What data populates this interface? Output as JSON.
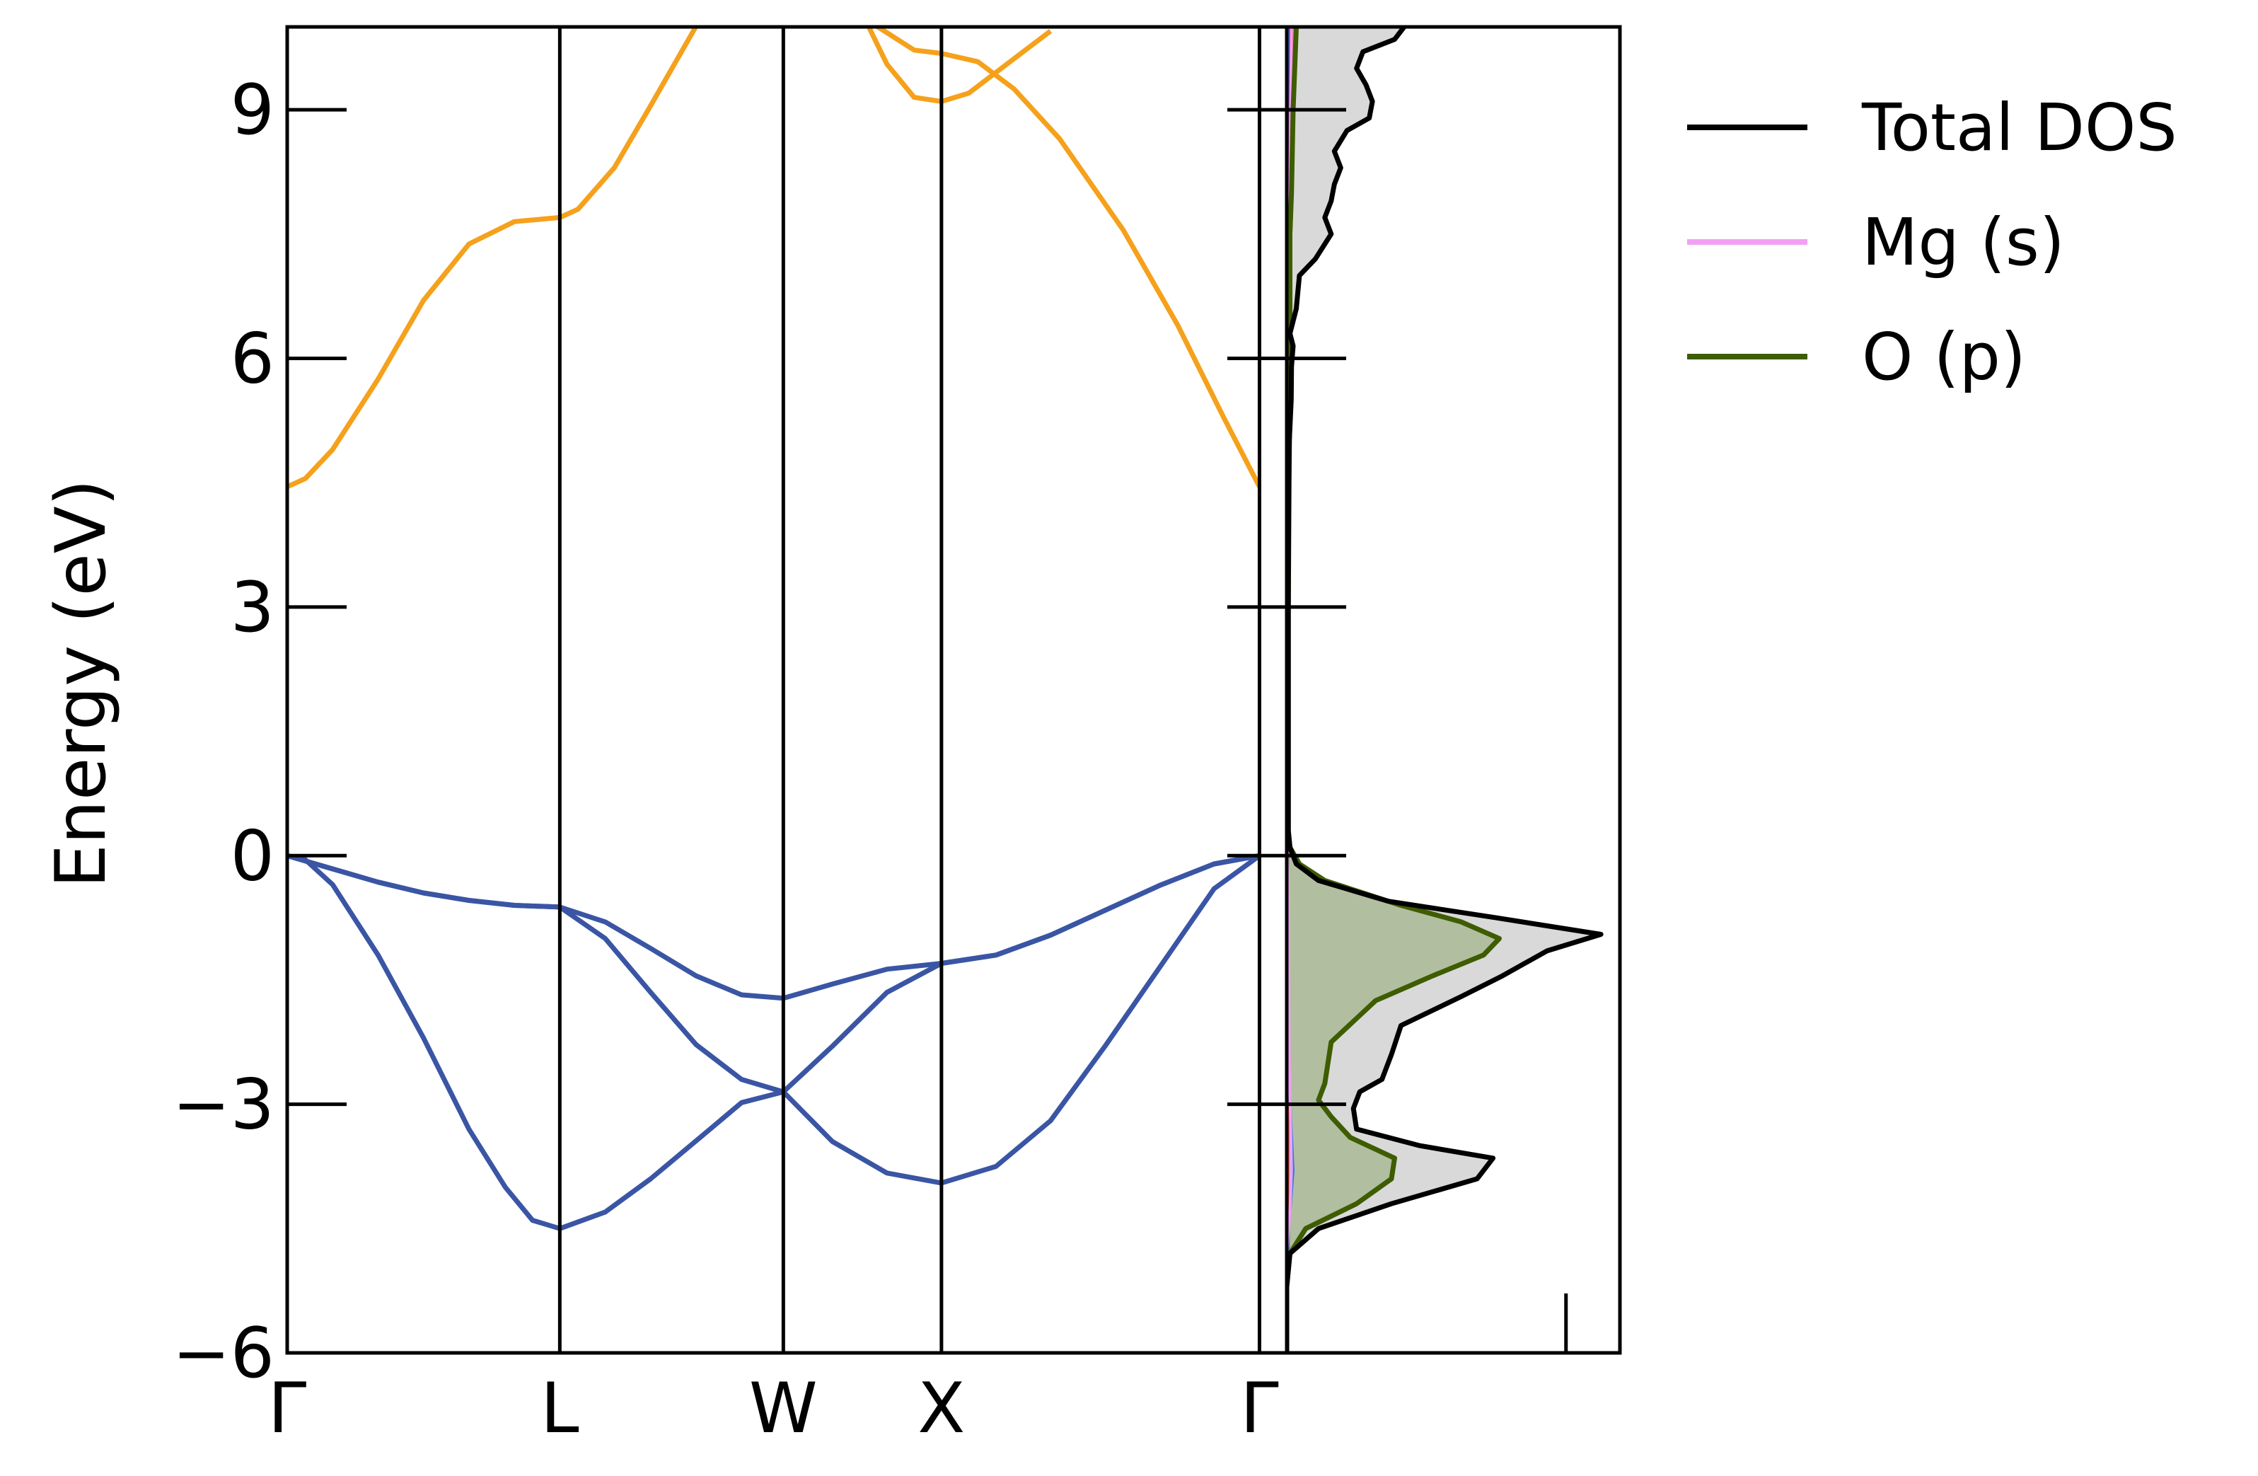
{
  "chart_data": {
    "type": "line",
    "title": "",
    "ylabel": "Energy (eV)",
    "ylim": [
      -6,
      10
    ],
    "yticks": [
      {
        "value": -6,
        "label": "−6"
      },
      {
        "value": -3,
        "label": "−3"
      },
      {
        "value": 0,
        "label": "0"
      },
      {
        "value": 3,
        "label": "3"
      },
      {
        "value": 6,
        "label": "6"
      },
      {
        "value": 9,
        "label": "9"
      }
    ],
    "kpath": {
      "range": [
        0,
        5.5
      ],
      "labels": [
        {
          "pos": 0,
          "label": "Γ"
        },
        {
          "pos": 1.5,
          "label": "L"
        },
        {
          "pos": 2.73,
          "label": "W"
        },
        {
          "pos": 3.6,
          "label": "X"
        },
        {
          "pos": 5.35,
          "label": "Γ"
        }
      ]
    },
    "band_colors": {
      "conduction": "#f5a11b",
      "valence": "#3a55a4"
    },
    "bands": [
      {
        "kind": "valence",
        "points": [
          [
            0,
            0
          ],
          [
            0.25,
            -0.16
          ],
          [
            0.5,
            -0.32
          ],
          [
            0.75,
            -0.45
          ],
          [
            1.0,
            -0.54
          ],
          [
            1.25,
            -0.6
          ],
          [
            1.5,
            -0.62
          ],
          [
            1.75,
            -0.8
          ],
          [
            2.0,
            -1.12
          ],
          [
            2.25,
            -1.45
          ],
          [
            2.5,
            -1.68
          ],
          [
            2.73,
            -1.72
          ],
          [
            3.0,
            -1.55
          ],
          [
            3.3,
            -1.37
          ],
          [
            3.6,
            -1.3
          ],
          [
            3.9,
            -1.2
          ],
          [
            4.2,
            -0.96
          ],
          [
            4.5,
            -0.66
          ],
          [
            4.8,
            -0.36
          ],
          [
            5.1,
            -0.1
          ],
          [
            5.35,
            0
          ]
        ]
      },
      {
        "kind": "valence",
        "points": [
          [
            0,
            0
          ],
          [
            0.25,
            -0.16
          ],
          [
            0.5,
            -0.32
          ],
          [
            0.75,
            -0.45
          ],
          [
            1.0,
            -0.54
          ],
          [
            1.25,
            -0.6
          ],
          [
            1.5,
            -0.62
          ],
          [
            1.75,
            -1.0
          ],
          [
            2.0,
            -1.65
          ],
          [
            2.25,
            -2.28
          ],
          [
            2.5,
            -2.7
          ],
          [
            2.73,
            -2.85
          ],
          [
            3.0,
            -2.3
          ],
          [
            3.3,
            -1.65
          ],
          [
            3.6,
            -1.3
          ],
          [
            3.9,
            -1.2
          ],
          [
            4.2,
            -0.96
          ],
          [
            4.5,
            -0.66
          ],
          [
            4.8,
            -0.36
          ],
          [
            5.1,
            -0.1
          ],
          [
            5.35,
            0
          ]
        ]
      },
      {
        "kind": "valence",
        "points": [
          [
            0,
            0
          ],
          [
            0.1,
            -0.05
          ],
          [
            0.25,
            -0.35
          ],
          [
            0.5,
            -1.2
          ],
          [
            0.75,
            -2.2
          ],
          [
            1.0,
            -3.3
          ],
          [
            1.2,
            -4.0
          ],
          [
            1.35,
            -4.4
          ],
          [
            1.5,
            -4.5
          ],
          [
            1.75,
            -4.3
          ],
          [
            2.0,
            -3.9
          ],
          [
            2.3,
            -3.35
          ],
          [
            2.5,
            -2.98
          ],
          [
            2.73,
            -2.85
          ],
          [
            3.0,
            -3.45
          ],
          [
            3.3,
            -3.83
          ],
          [
            3.6,
            -3.95
          ],
          [
            3.9,
            -3.75
          ],
          [
            4.2,
            -3.2
          ],
          [
            4.5,
            -2.3
          ],
          [
            4.8,
            -1.35
          ],
          [
            5.1,
            -0.4
          ],
          [
            5.35,
            0
          ]
        ]
      },
      {
        "kind": "conduction",
        "points": [
          [
            0,
            4.45
          ],
          [
            0.1,
            4.55
          ],
          [
            0.25,
            4.9
          ],
          [
            0.5,
            5.75
          ],
          [
            0.75,
            6.7
          ],
          [
            1.0,
            7.38
          ],
          [
            1.25,
            7.65
          ],
          [
            1.5,
            7.7
          ],
          [
            1.6,
            7.8
          ],
          [
            1.8,
            8.3
          ],
          [
            2.0,
            9.05
          ],
          [
            2.3,
            10.2
          ]
        ]
      },
      {
        "kind": "conduction",
        "points": [
          [
            3.2,
            10.0
          ],
          [
            3.3,
            9.55
          ],
          [
            3.45,
            9.15
          ],
          [
            3.6,
            9.1
          ],
          [
            3.75,
            9.2
          ],
          [
            3.9,
            9.45
          ],
          [
            4.05,
            9.7
          ],
          [
            4.2,
            9.95
          ]
        ]
      },
      {
        "kind": "conduction",
        "points": [
          [
            3.15,
            10.2
          ],
          [
            3.25,
            10.0
          ],
          [
            3.45,
            9.72
          ],
          [
            3.6,
            9.68
          ],
          [
            3.8,
            9.58
          ],
          [
            4.0,
            9.25
          ],
          [
            4.25,
            8.65
          ],
          [
            4.6,
            7.55
          ],
          [
            4.9,
            6.4
          ],
          [
            5.15,
            5.3
          ],
          [
            5.35,
            4.45
          ]
        ]
      }
    ],
    "dos": {
      "xlim": [
        0,
        1.05
      ],
      "fermi_marker": 0.88,
      "total": {
        "name": "Total DOS",
        "color": "#000000",
        "fill": "#d9d9d9",
        "points": [
          [
            -6,
            0
          ],
          [
            -5.2,
            0
          ],
          [
            -4.8,
            0.01
          ],
          [
            -4.5,
            0.1
          ],
          [
            -4.2,
            0.33
          ],
          [
            -3.9,
            0.6
          ],
          [
            -3.65,
            0.65
          ],
          [
            -3.5,
            0.42
          ],
          [
            -3.3,
            0.22
          ],
          [
            -3.05,
            0.21
          ],
          [
            -2.85,
            0.23
          ],
          [
            -2.7,
            0.3
          ],
          [
            -2.4,
            0.33
          ],
          [
            -2.05,
            0.36
          ],
          [
            -1.7,
            0.55
          ],
          [
            -1.45,
            0.68
          ],
          [
            -1.15,
            0.82
          ],
          [
            -0.95,
            0.99
          ],
          [
            -0.75,
            0.66
          ],
          [
            -0.55,
            0.32
          ],
          [
            -0.3,
            0.1
          ],
          [
            -0.1,
            0.03
          ],
          [
            0.1,
            0.01
          ],
          [
            0.3,
            0.005
          ],
          [
            1.5,
            0.005
          ],
          [
            3.0,
            0.005
          ],
          [
            4.5,
            0.006
          ],
          [
            5.0,
            0.008
          ],
          [
            5.5,
            0.014
          ],
          [
            5.9,
            0.015
          ],
          [
            6.15,
            0.02
          ],
          [
            6.3,
            0.01
          ],
          [
            6.6,
            0.03
          ],
          [
            7.0,
            0.04
          ],
          [
            7.2,
            0.09
          ],
          [
            7.5,
            0.14
          ],
          [
            7.7,
            0.12
          ],
          [
            7.9,
            0.14
          ],
          [
            8.1,
            0.15
          ],
          [
            8.3,
            0.17
          ],
          [
            8.5,
            0.15
          ],
          [
            8.75,
            0.19
          ],
          [
            8.9,
            0.26
          ],
          [
            9.1,
            0.27
          ],
          [
            9.3,
            0.25
          ],
          [
            9.5,
            0.22
          ],
          [
            9.7,
            0.24
          ],
          [
            9.85,
            0.34
          ],
          [
            10.0,
            0.37
          ]
        ]
      },
      "o_p": {
        "name": "O (p)",
        "color": "#3e5c00",
        "fill": "#b1bfa0",
        "points": [
          [
            -6,
            0
          ],
          [
            -5.2,
            0
          ],
          [
            -4.8,
            0.01
          ],
          [
            -4.5,
            0.06
          ],
          [
            -4.2,
            0.22
          ],
          [
            -3.9,
            0.33
          ],
          [
            -3.65,
            0.34
          ],
          [
            -3.4,
            0.2
          ],
          [
            -3.15,
            0.14
          ],
          [
            -2.95,
            0.1
          ],
          [
            -2.75,
            0.12
          ],
          [
            -2.5,
            0.13
          ],
          [
            -2.25,
            0.14
          ],
          [
            -2.0,
            0.21
          ],
          [
            -1.75,
            0.28
          ],
          [
            -1.45,
            0.46
          ],
          [
            -1.2,
            0.62
          ],
          [
            -1.0,
            0.67
          ],
          [
            -0.8,
            0.55
          ],
          [
            -0.6,
            0.36
          ],
          [
            -0.3,
            0.12
          ],
          [
            -0.1,
            0.04
          ],
          [
            0.1,
            0.01
          ],
          [
            0.3,
            0.005
          ],
          [
            3.0,
            0.005
          ],
          [
            6.0,
            0.01
          ],
          [
            7.5,
            0.01
          ],
          [
            8.0,
            0.015
          ],
          [
            9.0,
            0.02
          ],
          [
            10.0,
            0.03
          ]
        ]
      },
      "mg_s": {
        "name": "Mg (s)",
        "color": "#f2a0f2",
        "points": [
          [
            -6,
            0
          ],
          [
            -4.8,
            0
          ],
          [
            -4.3,
            0.01
          ],
          [
            -3.8,
            0.015
          ],
          [
            -3.2,
            0.012
          ],
          [
            -2.5,
            0.008
          ],
          [
            -1.5,
            0.006
          ],
          [
            -0.5,
            0.005
          ],
          [
            0,
            0.002
          ],
          [
            4.5,
            0.003
          ],
          [
            6.0,
            0.006
          ],
          [
            8.0,
            0.01
          ],
          [
            9.0,
            0.012
          ],
          [
            10.0,
            0.015
          ]
        ]
      },
      "minor": [
        {
          "color": "#e63b2e",
          "points": [
            [
              -6,
              0
            ],
            [
              -5.0,
              0.002
            ],
            [
              -3.0,
              0.004
            ],
            [
              0,
              0.003
            ],
            [
              4.5,
              0.004
            ],
            [
              6.0,
              0.008
            ],
            [
              8.0,
              0.012
            ],
            [
              9.5,
              0.014
            ],
            [
              10.0,
              0.016
            ]
          ]
        },
        {
          "color": "#2e7de6",
          "points": [
            [
              -6,
              0
            ],
            [
              -4.5,
              0.006
            ],
            [
              -3.8,
              0.02
            ],
            [
              -3.3,
              0.014
            ],
            [
              -2.7,
              0.008
            ],
            [
              -1.5,
              0.004
            ],
            [
              0,
              0.002
            ],
            [
              10,
              0.003
            ]
          ]
        },
        {
          "color": "#7a2d8c",
          "points": [
            [
              -6,
              0
            ],
            [
              6.0,
              0.004
            ],
            [
              9.0,
              0.01
            ],
            [
              10.0,
              0.012
            ]
          ]
        }
      ]
    },
    "legend": {
      "placement": "outside-upper-right",
      "entries": [
        {
          "label": "Total DOS",
          "color": "#000000"
        },
        {
          "label": "Mg (s)",
          "color": "#f2a0f2"
        },
        {
          "label": "O (p)",
          "color": "#3e5c00"
        }
      ]
    }
  }
}
